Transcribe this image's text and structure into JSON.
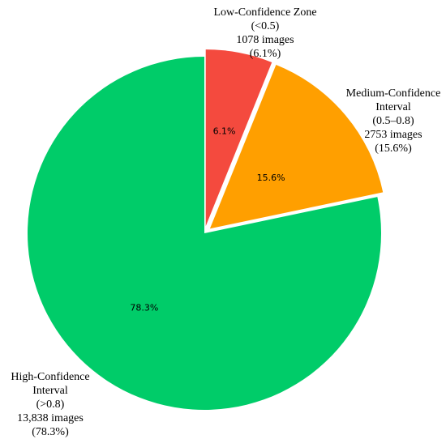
{
  "chart_data": {
    "type": "pie",
    "start": "top, clockwise",
    "slices": [
      {
        "id": "low",
        "value": 6.1,
        "pct_label": "6.1%",
        "color": "#f44a3e",
        "exploded": true,
        "label_lines": [
          "Low-Confidence Zone",
          "(<0.5)",
          "1078 images",
          "(6.1%)"
        ]
      },
      {
        "id": "medium",
        "value": 15.6,
        "pct_label": "15.6%",
        "color": "#ff9f00",
        "exploded": true,
        "label_lines": [
          "Medium-Confidence",
          "Interval",
          "(0.5–0.8)",
          "2753 images",
          "(15.6%)"
        ]
      },
      {
        "id": "high",
        "value": 78.3,
        "pct_label": "78.3%",
        "color": "#00cc69",
        "exploded": false,
        "label_lines": [
          "High-Confidence",
          "Interval",
          "(>0.8)",
          "13,838 images",
          "(78.3%)"
        ]
      }
    ]
  }
}
